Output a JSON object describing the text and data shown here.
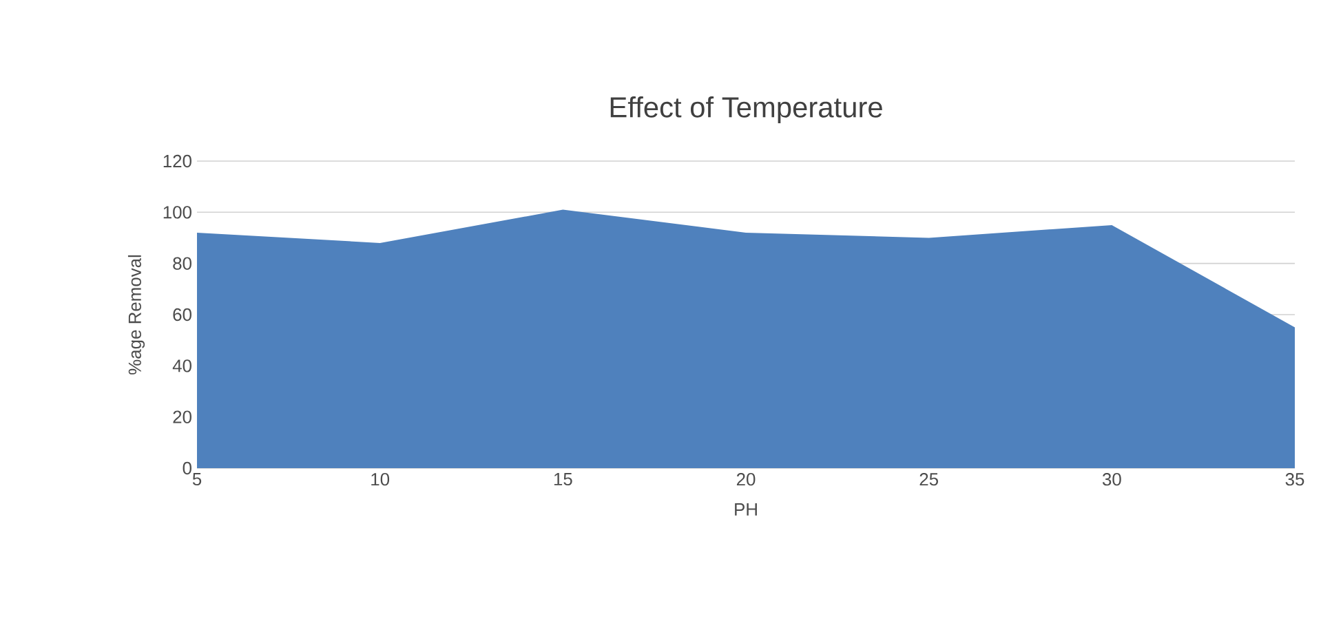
{
  "chart_data": {
    "type": "area",
    "title": "Effect of Temperature",
    "xlabel": "PH",
    "ylabel": "%age Removal",
    "categories": [
      "5",
      "10",
      "15",
      "20",
      "25",
      "30",
      "35"
    ],
    "series": [
      {
        "color": "#4f81bd",
        "values": [
          92,
          88,
          101,
          92,
          90,
          95,
          55
        ]
      }
    ],
    "ylim": [
      0,
      120
    ],
    "yticks": [
      0,
      20,
      40,
      60,
      80,
      100,
      120
    ],
    "grid": "y"
  }
}
